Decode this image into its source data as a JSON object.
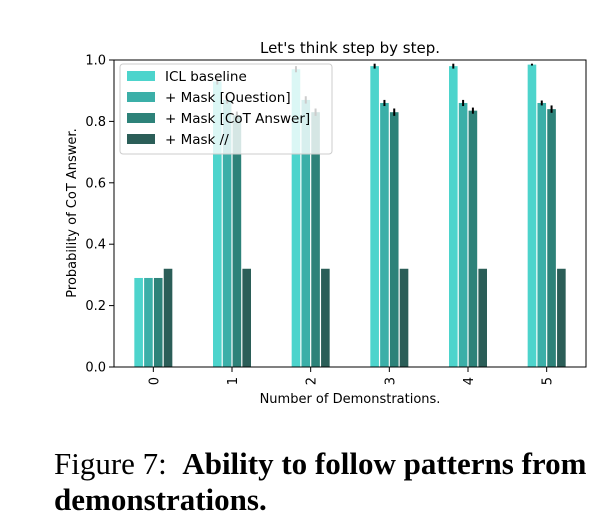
{
  "chart_data": {
    "type": "bar",
    "title": "Let's think step by step.",
    "xlabel": "Number of Demonstrations.",
    "ylabel": "Probability of CoT Answer.",
    "ylim": [
      0.0,
      1.0
    ],
    "yticks": [
      "0.0",
      "0.2",
      "0.4",
      "0.6",
      "0.8",
      "1.0"
    ],
    "categories": [
      "0",
      "1",
      "2",
      "3",
      "4",
      "5"
    ],
    "legend_position": "top-left",
    "series": [
      {
        "name": "ICL baseline",
        "color": "#4dd4cc",
        "values": [
          0.29,
          0.93,
          0.97,
          0.98,
          0.98,
          0.985
        ],
        "errors": [
          0,
          0.01,
          0.01,
          0.008,
          0.008,
          0.003
        ]
      },
      {
        "name": "+ Mask [Question]",
        "color": "#3bafa8",
        "values": [
          0.29,
          0.87,
          0.87,
          0.86,
          0.86,
          0.86
        ],
        "errors": [
          0,
          0.012,
          0.012,
          0.01,
          0.01,
          0.008
        ]
      },
      {
        "name": "+ Mask [CoT Answer]",
        "color": "#2d8279",
        "values": [
          0.29,
          0.82,
          0.83,
          0.83,
          0.835,
          0.84
        ],
        "errors": [
          0,
          0.012,
          0.012,
          0.012,
          0.01,
          0.012
        ]
      },
      {
        "name": "+ Mask //",
        "color": "#2b5e58",
        "values": [
          0.32,
          0.32,
          0.32,
          0.32,
          0.32,
          0.32
        ],
        "errors": [
          0,
          0,
          0,
          0,
          0,
          0
        ]
      }
    ]
  },
  "caption": {
    "prefix": "Figure 7:",
    "bold_text": "Ability to follow patterns from demonstrations."
  }
}
